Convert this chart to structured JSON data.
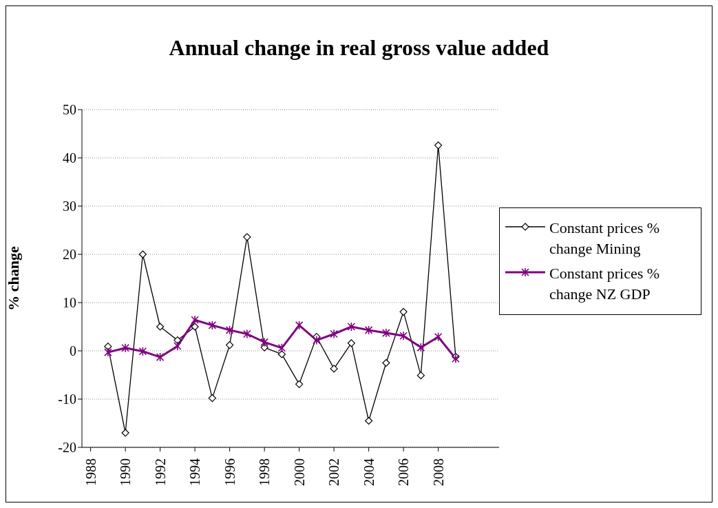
{
  "chart_data": {
    "type": "line",
    "title": "Annual change in real gross value added",
    "ylabel": "% change",
    "x": [
      1989,
      1990,
      1991,
      1992,
      1993,
      1994,
      1995,
      1996,
      1997,
      1998,
      1999,
      2000,
      2001,
      2002,
      2003,
      2004,
      2005,
      2006,
      2007,
      2008,
      2009
    ],
    "series": [
      {
        "name": "Constant prices % change Mining",
        "color": "#000000",
        "marker": "diamond",
        "values": [
          0.9,
          -17,
          20,
          5,
          2.2,
          5,
          -9.8,
          1.2,
          23.6,
          0.7,
          -0.7,
          -6.9,
          2.9,
          -3.7,
          1.6,
          -14.5,
          -2.5,
          8.1,
          -5.1,
          42.6,
          -1.2
        ]
      },
      {
        "name": "Constant prices % change NZ GDP",
        "color": "#800080",
        "marker": "cross",
        "values": [
          -0.3,
          0.6,
          -0.1,
          -1.3,
          1.0,
          6.4,
          5.3,
          4.3,
          3.5,
          1.8,
          0.6,
          5.3,
          2.2,
          3.5,
          5.0,
          4.3,
          3.7,
          3.1,
          0.7,
          2.9,
          -1.6
        ]
      }
    ],
    "xlim": [
      1987.5,
      2011.5
    ],
    "xticks": [
      1988,
      1990,
      1992,
      1994,
      1996,
      1998,
      2000,
      2002,
      2004,
      2006,
      2008
    ],
    "ylim": [
      -20,
      50
    ],
    "yticks": [
      -20,
      -10,
      0,
      10,
      20,
      30,
      40,
      50
    ],
    "grid": "y",
    "legend": "right"
  }
}
